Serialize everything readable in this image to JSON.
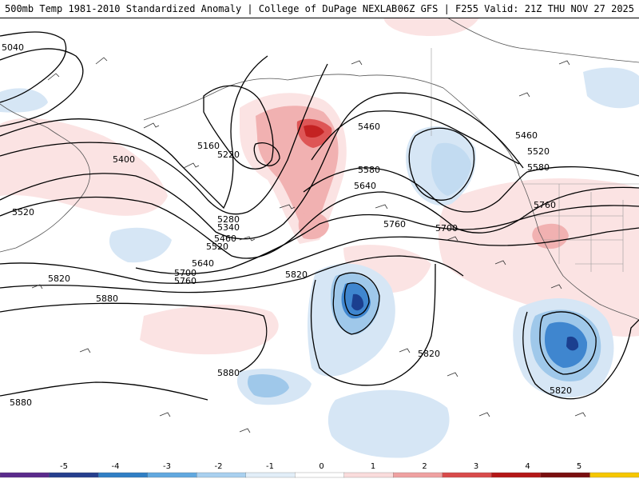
{
  "header": {
    "left_title": "500mb Temp 1981-2010 Standardized Anomaly | College of DuPage NEXLAB",
    "right_title": "06Z GFS | F255 Valid: 21Z THU NOV 27 2025"
  },
  "contour_labels": [
    "5040",
    "5160",
    "5220",
    "5280",
    "5340",
    "5400",
    "5460",
    "5520",
    "5580",
    "5640",
    "5700",
    "5760",
    "5820",
    "5880",
    "5460",
    "5460",
    "5520",
    "5580",
    "5640",
    "5700",
    "5760",
    "5820",
    "5820",
    "5820",
    "5880",
    "5880"
  ],
  "colorbar": {
    "tick_labels": [
      "-5",
      "-4",
      "-3",
      "-2",
      "-1",
      "0",
      "1",
      "2",
      "3",
      "4",
      "5"
    ],
    "colors": [
      "#5a2a8c",
      "#253e8e",
      "#2f7fc4",
      "#61a8df",
      "#a9d0ef",
      "#e2eef8",
      "#ffffff",
      "#fadcdc",
      "#efa1a1",
      "#d84a4a",
      "#b41717",
      "#7a0f0f",
      "#f6c700"
    ]
  },
  "colors": {
    "cold_light": "#d6e6f5",
    "cold_med": "#9fc8ea",
    "cold_strong": "#3f86cf",
    "cold_core": "#1b3f8f",
    "warm_light": "#fbe3e3",
    "warm_med": "#f1b1b1",
    "warm_strong": "#de5656",
    "warm_core": "#c42222"
  }
}
